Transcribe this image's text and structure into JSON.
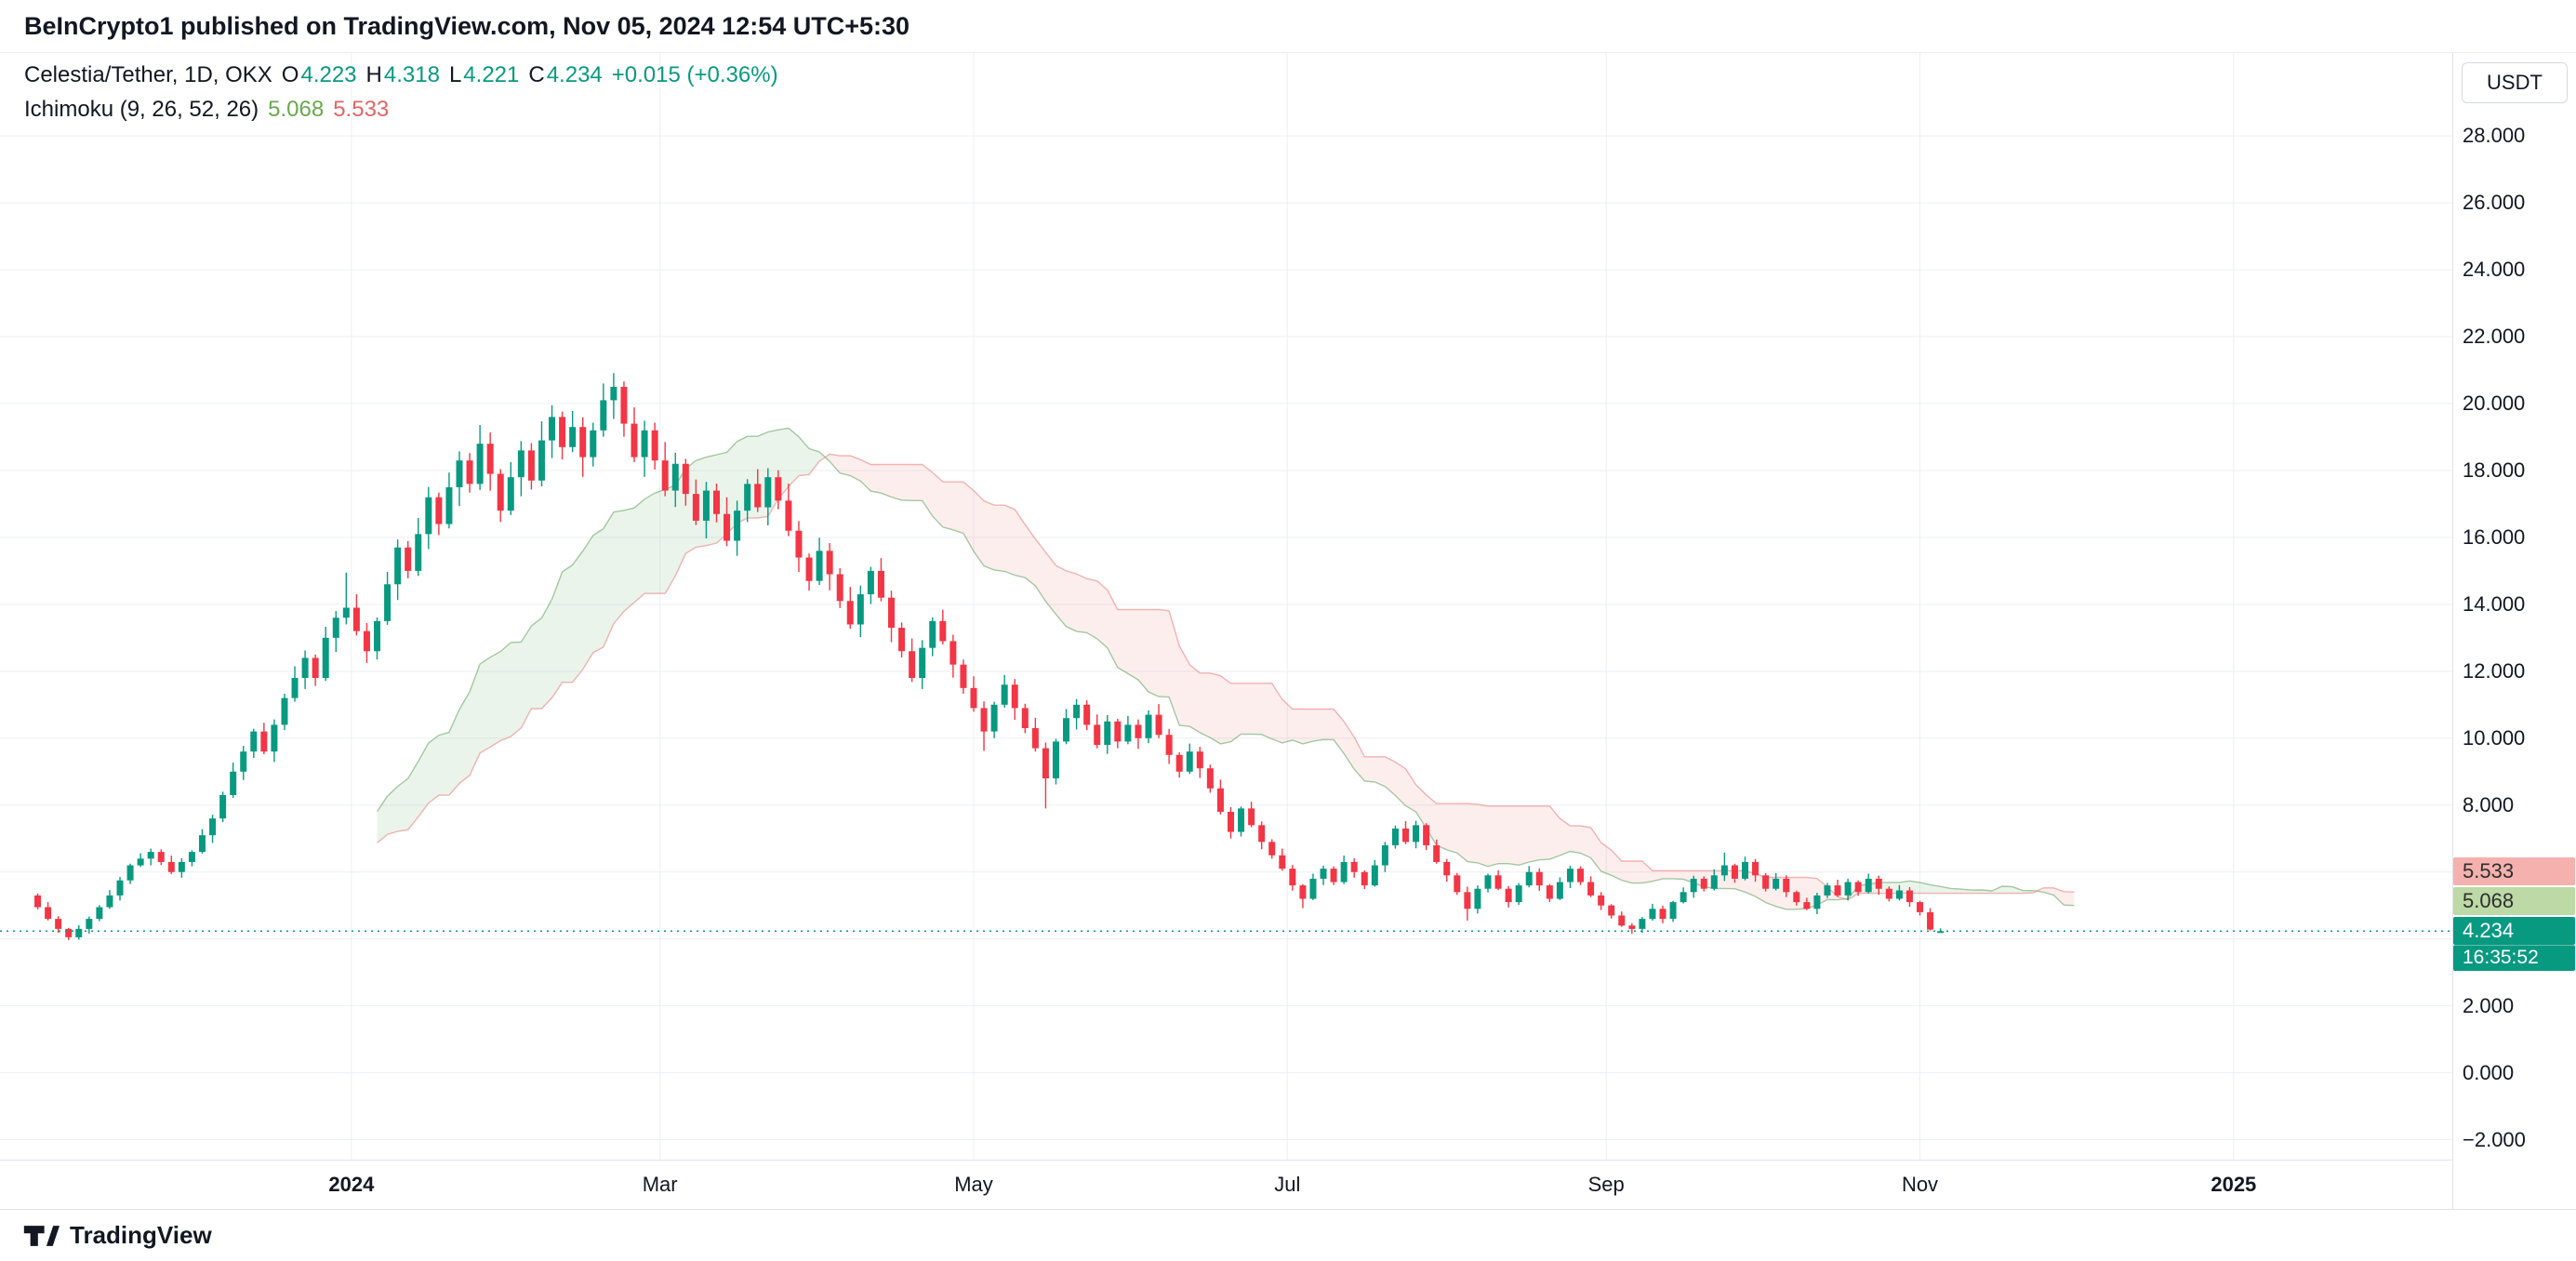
{
  "header": {
    "published_line": "BeInCrypto1 published on TradingView.com, Nov 05, 2024 12:54 UTC+5:30"
  },
  "legend": {
    "symbol_line": {
      "title": "Celestia/Tether, 1D, OKX",
      "o_label": "O",
      "o_val": "4.223",
      "h_label": "H",
      "h_val": "4.318",
      "l_label": "L",
      "l_val": "4.221",
      "c_label": "C",
      "c_val": "4.234",
      "change": "+0.015 (+0.36%)"
    },
    "indicator_line": {
      "name": "Ichimoku (9, 26, 52, 26)",
      "lead1_val": "5.068",
      "lead2_val": "5.533"
    }
  },
  "price_scale": {
    "currency_button": "USDT",
    "ticks": [
      {
        "label": "28.000",
        "value": 28
      },
      {
        "label": "26.000",
        "value": 26
      },
      {
        "label": "24.000",
        "value": 24
      },
      {
        "label": "22.000",
        "value": 22
      },
      {
        "label": "20.000",
        "value": 20
      },
      {
        "label": "18.000",
        "value": 18
      },
      {
        "label": "16.000",
        "value": 16
      },
      {
        "label": "14.000",
        "value": 14
      },
      {
        "label": "12.000",
        "value": 12
      },
      {
        "label": "10.000",
        "value": 10
      },
      {
        "label": "8.000",
        "value": 8
      },
      {
        "label": "2.000",
        "value": 2
      },
      {
        "label": "0.000",
        "value": 0
      },
      {
        "label": "−2.000",
        "value": -2
      }
    ],
    "lead2_chip": {
      "text": "5.533",
      "value": 5.533
    },
    "lead1_chip": {
      "text": "5.068",
      "value": 5.068
    },
    "last_chip": {
      "text": "4.234",
      "value": 4.234
    },
    "countdown": "16:35:52"
  },
  "time_scale": {
    "ticks": [
      {
        "label": "2024",
        "day": 62,
        "year": true
      },
      {
        "label": "Mar",
        "day": 122,
        "year": false
      },
      {
        "label": "May",
        "day": 183,
        "year": false
      },
      {
        "label": "Jul",
        "day": 244,
        "year": false
      },
      {
        "label": "Sep",
        "day": 306,
        "year": false
      },
      {
        "label": "Nov",
        "day": 367,
        "year": false
      },
      {
        "label": "2025",
        "day": 428,
        "year": true
      }
    ]
  },
  "footer": {
    "brand": "TradingView"
  },
  "colors": {
    "up": "#089981",
    "down": "#f23645",
    "grid": "#eceff2",
    "axis_border": "#e0e3eb",
    "text": "#131722",
    "lead1_text": "#6aa84f",
    "lead2_text": "#e06666",
    "chip1_bg": "#bcd9a6",
    "chip2_bg": "#f5b1ae",
    "cloud_green_fill": "rgba(103,168,104,0.13)",
    "cloud_red_fill": "rgba(235,84,84,0.10)",
    "cloud_green_line": "rgba(103,168,104,0.60)",
    "cloud_red_line": "rgba(235,121,121,0.55)",
    "last_price_line": "#089981"
  },
  "chart_data": {
    "type": "candlestick+ichimoku",
    "symbol": "Celestia/Tether (TIA/USDT)",
    "timeframe": "1D",
    "exchange": "OKX",
    "last_bar": {
      "open": 4.223,
      "high": 4.318,
      "low": 4.221,
      "close": 4.234,
      "change_abs": 0.015,
      "change_pct": 0.36
    },
    "ichimoku_params": [
      9,
      26,
      52,
      26
    ],
    "ichimoku_current": {
      "lead1": 5.068,
      "lead2": 5.533
    },
    "y_axis": {
      "min": -2,
      "max": 28,
      "step": 2,
      "unit": "USDT"
    },
    "x_axis": {
      "start_date": "2023-10-31",
      "bar_days": 2,
      "labels": [
        "2024",
        "Mar",
        "May",
        "Jul",
        "Sep",
        "Nov",
        "2025"
      ]
    },
    "legend_note": "candles are [open,high,low,close] at 2-day resolution estimated from the chart",
    "candles": [
      [
        5.3,
        5.36,
        4.88,
        4.95
      ],
      [
        4.95,
        5.1,
        4.55,
        4.6
      ],
      [
        4.6,
        4.68,
        4.18,
        4.3
      ],
      [
        4.3,
        4.33,
        3.97,
        4.05
      ],
      [
        4.05,
        4.41,
        3.98,
        4.3
      ],
      [
        4.3,
        4.67,
        4.16,
        4.6
      ],
      [
        4.6,
        5.01,
        4.53,
        4.95
      ],
      [
        4.95,
        5.46,
        4.9,
        5.3
      ],
      [
        5.3,
        5.85,
        5.15,
        5.75
      ],
      [
        5.75,
        6.25,
        5.64,
        6.2
      ],
      [
        6.2,
        6.56,
        6.15,
        6.4
      ],
      [
        6.4,
        6.7,
        6.2,
        6.6
      ],
      [
        6.6,
        6.68,
        6.21,
        6.3
      ],
      [
        6.3,
        6.49,
        5.94,
        6.0
      ],
      [
        6.0,
        6.41,
        5.83,
        6.3
      ],
      [
        6.3,
        6.65,
        6.17,
        6.6
      ],
      [
        6.6,
        7.28,
        6.55,
        7.1
      ],
      [
        7.1,
        7.71,
        6.87,
        7.6
      ],
      [
        7.6,
        8.4,
        7.49,
        8.3
      ],
      [
        8.3,
        9.27,
        8.22,
        9.0
      ],
      [
        9.0,
        9.77,
        8.75,
        9.6
      ],
      [
        9.6,
        10.28,
        9.41,
        10.2
      ],
      [
        10.2,
        10.46,
        9.52,
        9.6
      ],
      [
        9.6,
        10.56,
        9.29,
        10.4
      ],
      [
        10.4,
        11.33,
        10.24,
        11.2
      ],
      [
        11.2,
        12.15,
        11.09,
        11.8
      ],
      [
        11.8,
        12.62,
        11.47,
        12.4
      ],
      [
        12.4,
        12.5,
        11.56,
        11.8
      ],
      [
        11.8,
        13.33,
        11.71,
        13.0
      ],
      [
        13.0,
        13.8,
        12.58,
        13.6
      ],
      [
        13.6,
        14.95,
        13.4,
        13.9
      ],
      [
        13.9,
        14.3,
        13.07,
        13.2
      ],
      [
        13.2,
        13.44,
        12.25,
        12.6
      ],
      [
        12.6,
        13.61,
        12.35,
        13.5
      ],
      [
        13.5,
        14.97,
        13.39,
        14.6
      ],
      [
        14.6,
        15.94,
        14.13,
        15.7
      ],
      [
        15.7,
        15.89,
        14.78,
        15.0
      ],
      [
        15.0,
        16.58,
        14.85,
        16.1
      ],
      [
        16.1,
        17.51,
        15.65,
        17.2
      ],
      [
        17.2,
        17.34,
        16.07,
        16.4
      ],
      [
        16.4,
        17.94,
        16.27,
        17.5
      ],
      [
        17.5,
        18.57,
        16.94,
        18.3
      ],
      [
        18.3,
        18.52,
        17.34,
        17.6
      ],
      [
        17.6,
        19.36,
        17.42,
        18.8
      ],
      [
        18.8,
        19.14,
        17.4,
        17.9
      ],
      [
        17.9,
        18.04,
        16.46,
        16.8
      ],
      [
        16.8,
        18.25,
        16.67,
        17.8
      ],
      [
        17.8,
        18.88,
        17.23,
        18.6
      ],
      [
        18.6,
        18.82,
        17.43,
        17.7
      ],
      [
        17.7,
        19.47,
        17.52,
        18.9
      ],
      [
        18.9,
        19.95,
        18.37,
        19.6
      ],
      [
        19.6,
        19.76,
        18.33,
        18.7
      ],
      [
        18.7,
        19.78,
        18.55,
        19.3
      ],
      [
        19.3,
        19.59,
        17.81,
        18.4
      ],
      [
        18.4,
        19.43,
        18.12,
        19.2
      ],
      [
        19.2,
        20.6,
        19.01,
        20.1
      ],
      [
        20.1,
        20.91,
        19.54,
        20.5
      ],
      [
        20.5,
        20.66,
        19.01,
        19.4
      ],
      [
        19.4,
        19.89,
        18.25,
        18.4
      ],
      [
        18.4,
        19.49,
        17.81,
        19.2
      ],
      [
        19.2,
        19.43,
        18.03,
        18.3
      ],
      [
        18.3,
        18.85,
        17.23,
        17.4
      ],
      [
        17.4,
        18.53,
        16.91,
        18.2
      ],
      [
        18.2,
        18.35,
        16.95,
        17.3
      ],
      [
        17.3,
        17.73,
        16.37,
        16.5
      ],
      [
        16.5,
        17.66,
        15.97,
        17.4
      ],
      [
        17.4,
        17.61,
        16.45,
        16.7
      ],
      [
        16.7,
        17.2,
        15.74,
        15.9
      ],
      [
        15.9,
        17.1,
        15.45,
        16.8
      ],
      [
        16.8,
        17.74,
        16.46,
        17.6
      ],
      [
        17.6,
        18.04,
        16.76,
        16.9
      ],
      [
        16.9,
        18.07,
        16.36,
        17.8
      ],
      [
        17.8,
        18.01,
        16.84,
        17.1
      ],
      [
        17.1,
        17.61,
        16.04,
        16.2
      ],
      [
        16.2,
        16.49,
        14.97,
        15.4
      ],
      [
        15.4,
        15.52,
        14.41,
        14.7
      ],
      [
        14.7,
        15.99,
        14.58,
        15.6
      ],
      [
        15.6,
        15.83,
        14.42,
        14.9
      ],
      [
        14.9,
        15.08,
        13.89,
        14.1
      ],
      [
        14.1,
        14.52,
        13.27,
        13.4
      ],
      [
        13.4,
        14.56,
        13.02,
        14.3
      ],
      [
        14.3,
        15.12,
        14.01,
        15.0
      ],
      [
        15.0,
        15.38,
        14.09,
        14.2
      ],
      [
        14.2,
        14.41,
        12.87,
        13.3
      ],
      [
        13.3,
        13.46,
        12.41,
        12.6
      ],
      [
        12.6,
        12.98,
        11.68,
        11.8
      ],
      [
        11.8,
        12.93,
        11.47,
        12.7
      ],
      [
        12.7,
        13.61,
        12.45,
        13.5
      ],
      [
        13.5,
        13.84,
        12.8,
        12.9
      ],
      [
        12.9,
        13.09,
        11.81,
        12.2
      ],
      [
        12.2,
        12.35,
        11.33,
        11.5
      ],
      [
        11.5,
        11.85,
        10.79,
        10.9
      ],
      [
        10.9,
        11.1,
        9.62,
        10.2
      ],
      [
        10.2,
        11.09,
        10.0,
        11.0
      ],
      [
        11.0,
        11.89,
        10.91,
        11.6
      ],
      [
        11.6,
        11.77,
        10.55,
        10.9
      ],
      [
        10.9,
        11.03,
        10.15,
        10.3
      ],
      [
        10.3,
        10.61,
        9.6,
        9.7
      ],
      [
        9.7,
        9.87,
        7.9,
        8.8
      ],
      [
        8.8,
        9.98,
        8.62,
        9.9
      ],
      [
        9.9,
        10.87,
        9.82,
        10.6
      ],
      [
        10.6,
        11.17,
        10.26,
        11.0
      ],
      [
        11.0,
        11.13,
        10.24,
        10.4
      ],
      [
        10.4,
        10.71,
        9.7,
        9.8
      ],
      [
        9.8,
        10.69,
        9.53,
        10.5
      ],
      [
        10.5,
        10.58,
        9.7,
        9.9
      ],
      [
        9.9,
        10.66,
        9.82,
        10.4
      ],
      [
        10.4,
        10.56,
        9.68,
        10.0
      ],
      [
        10.0,
        10.83,
        9.85,
        10.7
      ],
      [
        10.7,
        11.02,
        10.0,
        10.1
      ],
      [
        10.1,
        10.28,
        9.23,
        9.5
      ],
      [
        9.5,
        9.58,
        8.82,
        9.0
      ],
      [
        9.0,
        9.84,
        8.93,
        9.6
      ],
      [
        9.6,
        9.74,
        8.81,
        9.1
      ],
      [
        9.1,
        9.21,
        8.37,
        8.5
      ],
      [
        8.5,
        8.76,
        7.72,
        7.8
      ],
      [
        7.8,
        7.94,
        7.0,
        7.2
      ],
      [
        7.2,
        7.96,
        7.06,
        7.9
      ],
      [
        7.9,
        8.1,
        7.34,
        7.4
      ],
      [
        7.4,
        7.51,
        6.68,
        6.9
      ],
      [
        6.9,
        6.98,
        6.4,
        6.5
      ],
      [
        6.5,
        6.7,
        6.04,
        6.1
      ],
      [
        6.1,
        6.21,
        5.44,
        5.6
      ],
      [
        5.6,
        5.64,
        4.92,
        5.2
      ],
      [
        5.2,
        5.95,
        5.16,
        5.8
      ],
      [
        5.8,
        6.19,
        5.61,
        6.1
      ],
      [
        6.1,
        6.17,
        5.61,
        5.7
      ],
      [
        5.7,
        6.49,
        5.64,
        6.3
      ],
      [
        6.3,
        6.41,
        5.83,
        6.0
      ],
      [
        6.0,
        6.05,
        5.49,
        5.6
      ],
      [
        5.6,
        6.36,
        5.56,
        6.2
      ],
      [
        6.2,
        6.9,
        6.0,
        6.8
      ],
      [
        6.8,
        7.39,
        6.7,
        7.3
      ],
      [
        7.3,
        7.52,
        6.83,
        6.9
      ],
      [
        6.9,
        7.53,
        6.71,
        7.4
      ],
      [
        7.4,
        7.46,
        6.66,
        6.8
      ],
      [
        6.8,
        6.97,
        6.25,
        6.3
      ],
      [
        6.3,
        6.39,
        5.71,
        5.9
      ],
      [
        5.9,
        5.97,
        5.32,
        5.4
      ],
      [
        5.4,
        5.56,
        4.55,
        4.9
      ],
      [
        4.9,
        5.6,
        4.76,
        5.5
      ],
      [
        5.5,
        5.95,
        5.39,
        5.9
      ],
      [
        5.9,
        6.05,
        5.46,
        5.5
      ],
      [
        5.5,
        5.58,
        4.94,
        5.1
      ],
      [
        5.1,
        5.67,
        5.02,
        5.6
      ],
      [
        5.6,
        6.18,
        5.54,
        6.0
      ],
      [
        6.0,
        6.11,
        5.44,
        5.6
      ],
      [
        5.6,
        5.64,
        5.1,
        5.2
      ],
      [
        5.2,
        5.84,
        5.16,
        5.7
      ],
      [
        5.7,
        6.19,
        5.52,
        6.1
      ],
      [
        6.1,
        6.17,
        5.61,
        5.7
      ],
      [
        5.7,
        5.87,
        5.25,
        5.3
      ],
      [
        5.3,
        5.4,
        4.86,
        5.0
      ],
      [
        5.0,
        5.04,
        4.61,
        4.7
      ],
      [
        4.7,
        4.82,
        4.36,
        4.4
      ],
      [
        4.4,
        4.47,
        4.15,
        4.3
      ],
      [
        4.3,
        4.66,
        4.18,
        4.6
      ],
      [
        4.6,
        5.05,
        4.55,
        4.9
      ],
      [
        4.9,
        4.99,
        4.47,
        4.6
      ],
      [
        4.6,
        5.14,
        4.51,
        5.1
      ],
      [
        5.1,
        5.54,
        5.06,
        5.4
      ],
      [
        5.4,
        5.89,
        5.23,
        5.8
      ],
      [
        5.8,
        5.87,
        5.42,
        5.5
      ],
      [
        5.5,
        6.08,
        5.45,
        5.9
      ],
      [
        5.9,
        6.58,
        5.73,
        6.2
      ],
      [
        6.2,
        6.25,
        5.68,
        5.8
      ],
      [
        5.8,
        6.46,
        5.75,
        6.3
      ],
      [
        6.3,
        6.39,
        5.71,
        5.9
      ],
      [
        5.9,
        5.97,
        5.42,
        5.5
      ],
      [
        5.5,
        5.97,
        5.45,
        5.8
      ],
      [
        5.8,
        5.9,
        5.25,
        5.4
      ],
      [
        5.4,
        5.44,
        5.0,
        5.1
      ],
      [
        5.1,
        5.23,
        4.86,
        4.9
      ],
      [
        4.9,
        5.38,
        4.74,
        5.3
      ],
      [
        5.3,
        5.67,
        5.22,
        5.6
      ],
      [
        5.6,
        5.77,
        5.25,
        5.3
      ],
      [
        5.3,
        5.8,
        5.15,
        5.7
      ],
      [
        5.7,
        5.75,
        5.29,
        5.4
      ],
      [
        5.4,
        5.95,
        5.36,
        5.8
      ],
      [
        5.8,
        5.89,
        5.32,
        5.5
      ],
      [
        5.5,
        5.57,
        5.12,
        5.2
      ],
      [
        5.2,
        5.61,
        5.15,
        5.45
      ],
      [
        5.45,
        5.55,
        4.96,
        5.1
      ],
      [
        5.1,
        5.14,
        4.7,
        4.8
      ],
      [
        4.8,
        4.92,
        4.25,
        4.28
      ],
      [
        4.223,
        4.318,
        4.221,
        4.234
      ]
    ]
  }
}
